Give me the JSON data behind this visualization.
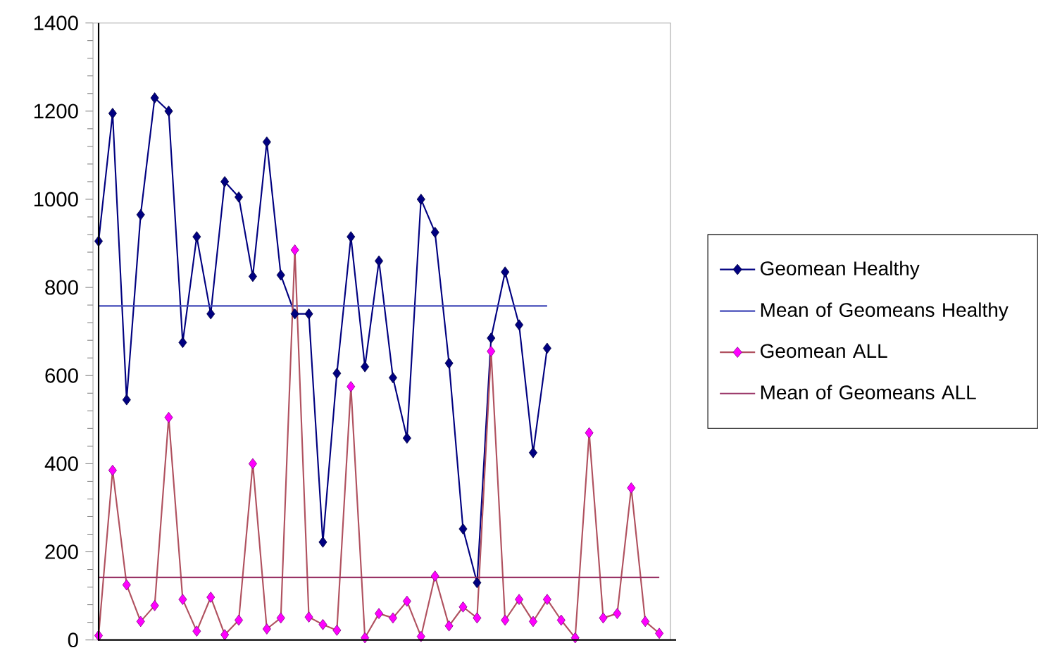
{
  "chart_data": {
    "type": "line",
    "categories": [
      null,
      null,
      null,
      null,
      null,
      null,
      null,
      null,
      null,
      null,
      null,
      null,
      null,
      null,
      null,
      null,
      null,
      null,
      null,
      null,
      null,
      null,
      null,
      null,
      null,
      null,
      null,
      null,
      null,
      null,
      null,
      null,
      null,
      null,
      null,
      null,
      null,
      null,
      null,
      null,
      null
    ],
    "series": [
      {
        "name": "Geomean Healthy",
        "color": "#000080",
        "marker": "diamond",
        "values": [
          905,
          1195,
          545,
          965,
          1230,
          1200,
          675,
          915,
          740,
          1040,
          1005,
          825,
          1130,
          828,
          740,
          740,
          222,
          605,
          915,
          620,
          860,
          595,
          458,
          1000,
          925,
          628,
          252,
          130,
          685,
          835,
          715,
          425,
          662,
          null,
          null,
          null,
          null,
          null,
          null,
          null,
          null
        ]
      },
      {
        "name": "Mean of Geomeans Healthy",
        "color": "#4048b8",
        "marker": "none",
        "values": [
          758,
          758,
          758,
          758,
          758,
          758,
          758,
          758,
          758,
          758,
          758,
          758,
          758,
          758,
          758,
          758,
          758,
          758,
          758,
          758,
          758,
          758,
          758,
          758,
          758,
          758,
          758,
          758,
          758,
          758,
          758,
          758,
          758,
          null,
          null,
          null,
          null,
          null,
          null,
          null,
          null
        ]
      },
      {
        "name": "Geomean ALL",
        "color": "#ff00ff",
        "marker": "diamond",
        "values": [
          10,
          385,
          125,
          42,
          78,
          505,
          92,
          20,
          97,
          12,
          45,
          400,
          25,
          50,
          885,
          52,
          35,
          22,
          575,
          5,
          60,
          50,
          88,
          8,
          145,
          32,
          75,
          50,
          655,
          45,
          92,
          42,
          92,
          45,
          5,
          470,
          50,
          60,
          345,
          42,
          15
        ]
      },
      {
        "name": "Mean of Geomeans ALL",
        "color": "#993366",
        "marker": "none",
        "values": [
          142,
          142,
          142,
          142,
          142,
          142,
          142,
          142,
          142,
          142,
          142,
          142,
          142,
          142,
          142,
          142,
          142,
          142,
          142,
          142,
          142,
          142,
          142,
          142,
          142,
          142,
          142,
          142,
          142,
          142,
          142,
          142,
          142,
          142,
          142,
          142,
          142,
          142,
          142,
          142,
          142
        ]
      }
    ],
    "ylim": [
      0,
      1400
    ],
    "yticks": [
      0,
      200,
      400,
      600,
      800,
      1000,
      1200,
      1400
    ],
    "tick_labels": "y",
    "legend": "right",
    "line_style": "solid"
  }
}
